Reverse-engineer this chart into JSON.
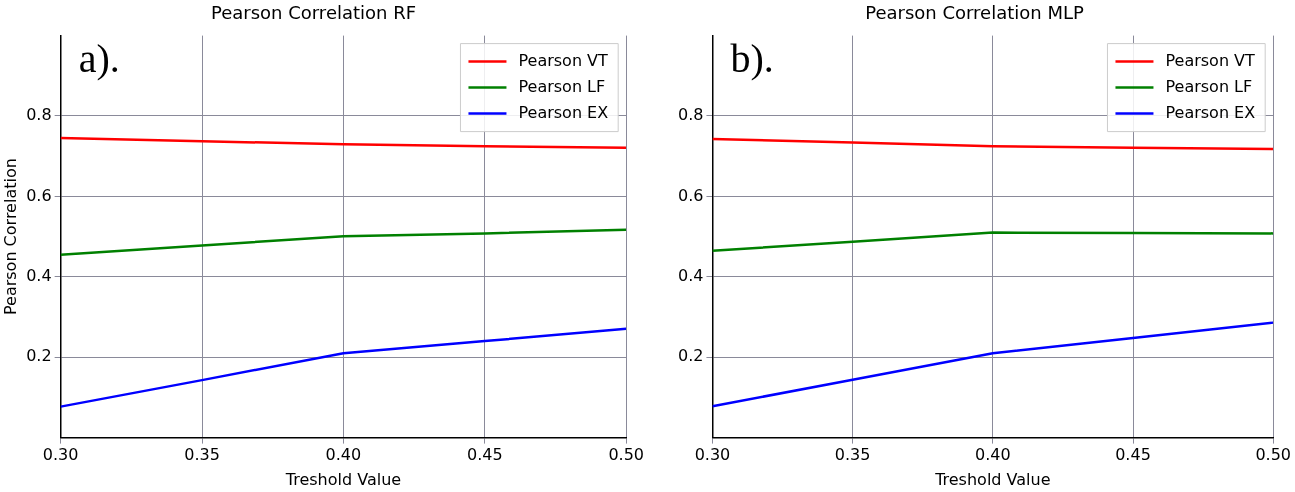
{
  "chart_data": [
    {
      "type": "line",
      "title": "Pearson Correlation RF",
      "xlabel": "Treshold Value",
      "ylabel": "Pearson Correlation",
      "annotations": [
        "a)."
      ],
      "x": [
        0.3,
        0.35,
        0.4,
        0.45,
        0.5
      ],
      "xlim": [
        0.3,
        0.5
      ],
      "xticks": [
        {
          "value": 0.3,
          "label": "0.30"
        },
        {
          "value": 0.35,
          "label": "0.35"
        },
        {
          "value": 0.4,
          "label": "0.40"
        },
        {
          "value": 0.45,
          "label": "0.45"
        },
        {
          "value": 0.5,
          "label": "0.50"
        }
      ],
      "ylim": [
        0,
        1
      ],
      "yticks": [
        0.2,
        0.4,
        0.6,
        0.8
      ],
      "grid": true,
      "legend": "top right",
      "marker": "none",
      "line_style": "solid",
      "series": [
        {
          "name": "Pearson VT",
          "color": "#ff0000",
          "values": [
            0.745,
            0.737,
            0.73,
            0.725,
            0.721
          ]
        },
        {
          "name": "Pearson LF",
          "color": "#008000",
          "values": [
            0.455,
            0.478,
            0.501,
            0.508,
            0.517
          ]
        },
        {
          "name": "Pearson EX",
          "color": "#0000ff",
          "values": [
            0.077,
            0.143,
            0.21,
            0.24,
            0.271
          ]
        }
      ]
    },
    {
      "type": "line",
      "title": "Pearson Correlation MLP",
      "xlabel": "Treshold Value",
      "annotations": [
        "b)."
      ],
      "x": [
        0.3,
        0.35,
        0.4,
        0.45,
        0.5
      ],
      "xlim": [
        0.3,
        0.5
      ],
      "xticks": [
        {
          "value": 0.3,
          "label": "0.30"
        },
        {
          "value": 0.35,
          "label": "0.35"
        },
        {
          "value": 0.4,
          "label": "0.40"
        },
        {
          "value": 0.45,
          "label": "0.45"
        },
        {
          "value": 0.5,
          "label": "0.50"
        }
      ],
      "ylim": [
        0,
        1
      ],
      "yticks": [
        0.2,
        0.4,
        0.6,
        0.8
      ],
      "grid": true,
      "legend": "top right",
      "marker": "none",
      "line_style": "solid",
      "series": [
        {
          "name": "Pearson VT",
          "color": "#ff0000",
          "values": [
            0.743,
            0.734,
            0.725,
            0.721,
            0.718
          ]
        },
        {
          "name": "Pearson LF",
          "color": "#008000",
          "values": [
            0.465,
            0.487,
            0.51,
            0.509,
            0.508
          ]
        },
        {
          "name": "Pearson EX",
          "color": "#0000ff",
          "values": [
            0.078,
            0.144,
            0.21,
            0.248,
            0.286
          ]
        }
      ]
    }
  ]
}
